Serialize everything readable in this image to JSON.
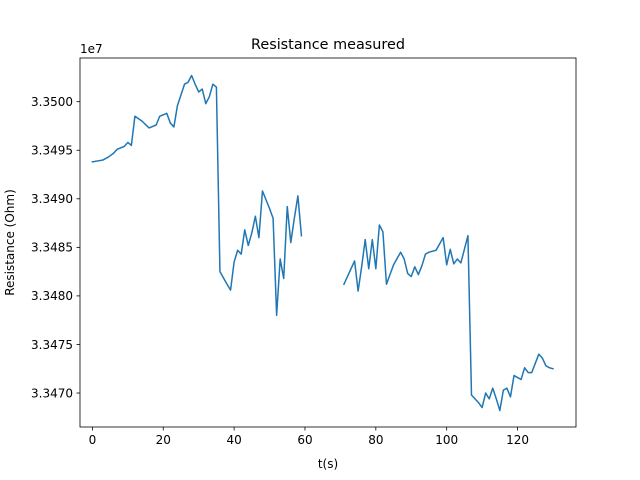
{
  "chart_data": {
    "type": "line",
    "title": "Resistance measured",
    "xlabel": "t(s)",
    "ylabel": "Resistance (Ohm)",
    "y_offset_label": "1e7",
    "y_scale": 10000000,
    "xlim": [
      -3.5,
      136.5
    ],
    "ylim": [
      3.34665,
      3.35045
    ],
    "x_ticks": [
      0,
      20,
      40,
      60,
      80,
      100,
      120
    ],
    "y_ticks": [
      3.347,
      3.3475,
      3.348,
      3.3485,
      3.349,
      3.3495,
      3.35
    ],
    "y_tick_labels": [
      "3.3470",
      "3.3475",
      "3.3480",
      "3.3485",
      "3.3490",
      "3.3495",
      "3.3500"
    ],
    "grid": false,
    "line_color": "#1f77b4",
    "series": [
      {
        "segments": [
          {
            "x": [
              0,
              1.5,
              3,
              4.5,
              6,
              7,
              9,
              10,
              11,
              12,
              14,
              16,
              18,
              19,
              21,
              22,
              23,
              24,
              26,
              27,
              28,
              29,
              30,
              31,
              32,
              33,
              34,
              35,
              36,
              38,
              39,
              40,
              41,
              42,
              43,
              44,
              45,
              46,
              47,
              48,
              50,
              51,
              52,
              53,
              54,
              55,
              56,
              57,
              58,
              59
            ],
            "y": [
              3.34938,
              3.34939,
              3.3494,
              3.34943,
              3.34947,
              3.34951,
              3.34954,
              3.34958,
              3.34955,
              3.34985,
              3.3498,
              3.34973,
              3.34976,
              3.34985,
              3.34988,
              3.34978,
              3.34974,
              3.34996,
              3.35018,
              3.3502,
              3.35027,
              3.35018,
              3.3501,
              3.35013,
              3.34998,
              3.35005,
              3.35018,
              3.35015,
              3.34825,
              3.34812,
              3.34806,
              3.34835,
              3.34847,
              3.34843,
              3.34868,
              3.34852,
              3.34865,
              3.34882,
              3.3486,
              3.34908,
              3.3489,
              3.3488,
              3.3478,
              3.34838,
              3.34818,
              3.34892,
              3.34855,
              3.3488,
              3.34903,
              3.34862
            ]
          },
          {
            "x": [
              71,
              73,
              74,
              75,
              76,
              77,
              78,
              79,
              80,
              81,
              82,
              83,
              85,
              87,
              88,
              89,
              90,
              91,
              92,
              93,
              94,
              95,
              97,
              99,
              100,
              101,
              102,
              103,
              104,
              106,
              107,
              109,
              110,
              111,
              112,
              113,
              114,
              115,
              116,
              117,
              118,
              119,
              121,
              122,
              123,
              124,
              126,
              127,
              128,
              129,
              130
            ],
            "y": [
              3.34812,
              3.34828,
              3.34836,
              3.34805,
              3.3483,
              3.34858,
              3.34828,
              3.34858,
              3.34828,
              3.34873,
              3.34866,
              3.34812,
              3.34832,
              3.34845,
              3.34838,
              3.34823,
              3.3482,
              3.3483,
              3.34822,
              3.34831,
              3.34843,
              3.34845,
              3.34847,
              3.3486,
              3.34832,
              3.34848,
              3.34833,
              3.34838,
              3.34834,
              3.34862,
              3.34698,
              3.3469,
              3.34685,
              3.347,
              3.34694,
              3.34705,
              3.34694,
              3.34682,
              3.34703,
              3.34705,
              3.34696,
              3.34718,
              3.34714,
              3.34726,
              3.34721,
              3.34721,
              3.3474,
              3.34736,
              3.34728,
              3.34726,
              3.34725
            ]
          }
        ]
      }
    ]
  }
}
